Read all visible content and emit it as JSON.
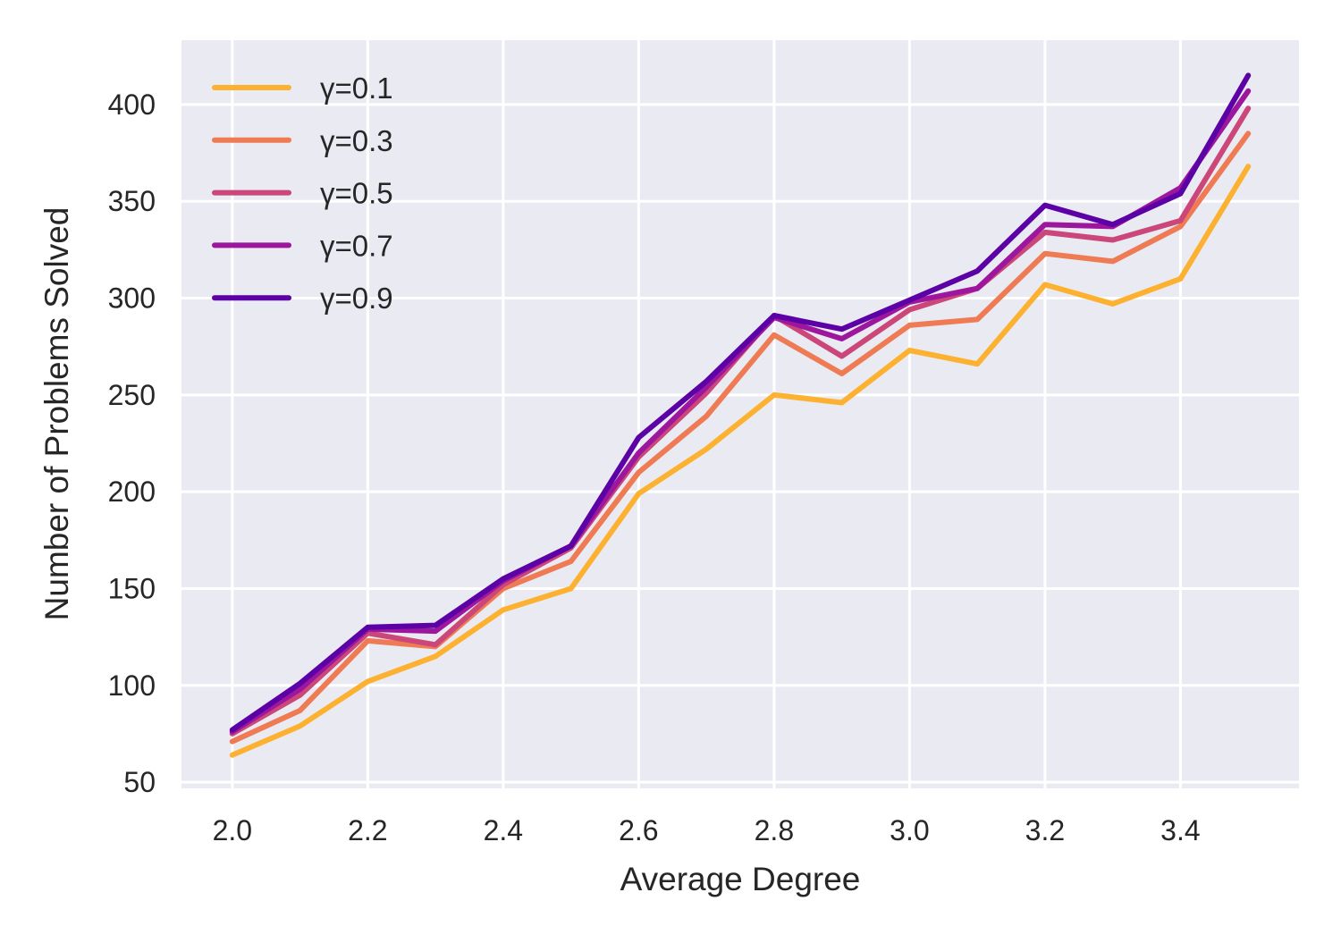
{
  "chart_data": {
    "type": "line",
    "title": "",
    "xlabel": "Average Degree",
    "ylabel": "Number of Problems Solved",
    "xlim": [
      1.925,
      3.575
    ],
    "ylim": [
      46.8,
      433.2
    ],
    "xticks": [
      2.0,
      2.2,
      2.4,
      2.6,
      2.8,
      3.0,
      3.2,
      3.4
    ],
    "xtick_labels": [
      "2.0",
      "2.2",
      "2.4",
      "2.6",
      "2.8",
      "3.0",
      "3.2",
      "3.4"
    ],
    "yticks": [
      50,
      100,
      150,
      200,
      250,
      300,
      350,
      400
    ],
    "ytick_labels": [
      "50",
      "100",
      "150",
      "200",
      "250",
      "300",
      "350",
      "400"
    ],
    "grid": true,
    "legend_placement": "top-left",
    "background": "#eaeaf2",
    "x": [
      2.0,
      2.1,
      2.2,
      2.3,
      2.4,
      2.5,
      2.6,
      2.7,
      2.8,
      2.9,
      3.0,
      3.1,
      3.2,
      3.3,
      3.4,
      3.5
    ],
    "series": [
      {
        "name": "γ=0.1",
        "color": "#fcb131",
        "values": [
          64,
          79,
          102,
          115,
          139,
          150,
          199,
          222,
          250,
          246,
          273,
          266,
          307,
          297,
          310,
          368
        ]
      },
      {
        "name": "γ=0.3",
        "color": "#ee7b54",
        "values": [
          71,
          87,
          123,
          120,
          150,
          164,
          210,
          239,
          281,
          261,
          286,
          289,
          323,
          319,
          337,
          385
        ]
      },
      {
        "name": "γ=0.5",
        "color": "#cb4679",
        "values": [
          75,
          95,
          127,
          121,
          152,
          171,
          218,
          251,
          291,
          270,
          294,
          305,
          334,
          330,
          340,
          398
        ]
      },
      {
        "name": "γ=0.7",
        "color": "#9c179e",
        "values": [
          76,
          98,
          129,
          128,
          154,
          172,
          220,
          254,
          290,
          279,
          298,
          305,
          338,
          337,
          357,
          407
        ]
      },
      {
        "name": "γ=0.9",
        "color": "#5c01a6",
        "values": [
          77,
          101,
          130,
          131,
          155,
          172,
          228,
          257,
          291,
          284,
          299,
          314,
          348,
          338,
          354,
          415
        ]
      }
    ]
  }
}
